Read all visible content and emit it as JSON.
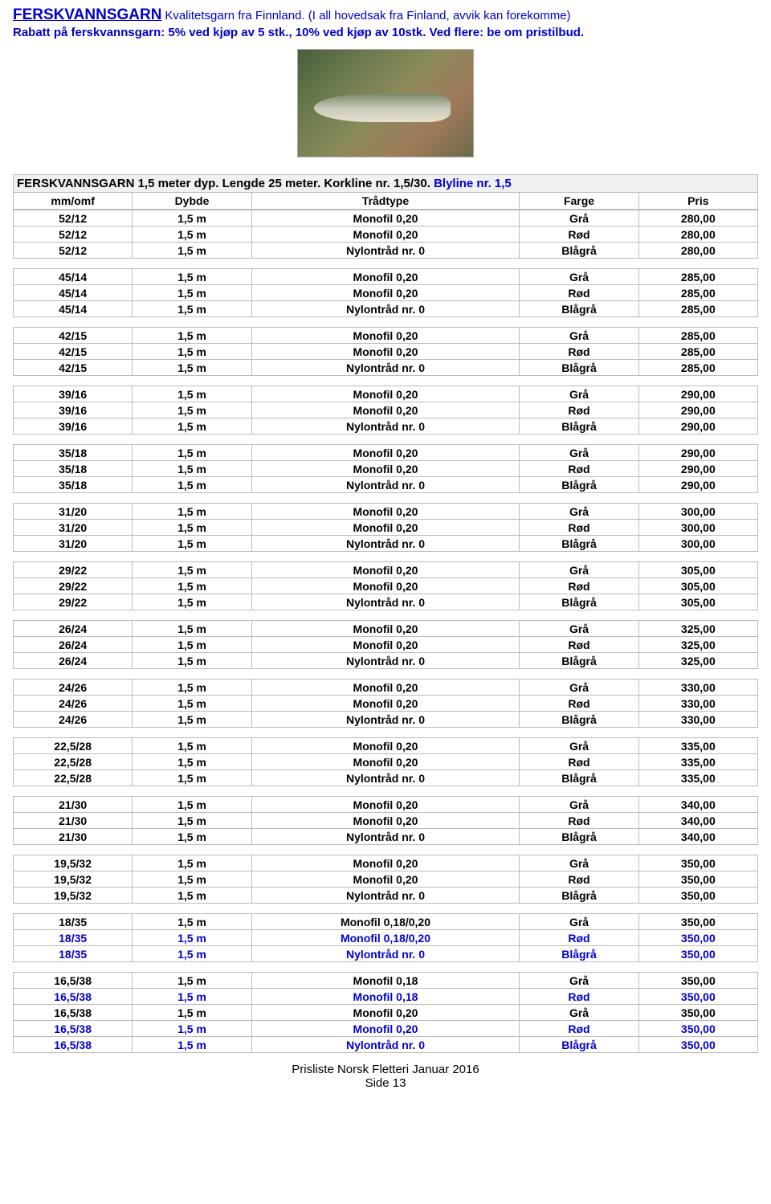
{
  "header": {
    "title": "FERSKVANNSGARN",
    "subtitle": "Kvalitetsgarn fra Finnland. (I all hovedsak fra Finland, avvik kan forekomme)",
    "discount": "Rabatt på ferskvannsgarn: 5% ved kjøp av 5 stk., 10% ved kjøp av 10stk. Ved flere: be om pristilbud."
  },
  "section": {
    "title_black": "FERSKVANNSGARN 1,5 meter dyp. Lengde 25 meter. Korkline nr. 1,5/30. ",
    "title_blue": "Blyline nr. 1,5"
  },
  "columns": [
    "mm/omf",
    "Dybde",
    "Trådtype",
    "Farge",
    "Pris"
  ],
  "groups": [
    {
      "rows": [
        {
          "c": [
            "52/12",
            "1,5 m",
            "Monofil 0,20",
            "Grå",
            "280,00"
          ],
          "blue": false
        },
        {
          "c": [
            "52/12",
            "1,5 m",
            "Monofil 0,20",
            "Rød",
            "280,00"
          ],
          "blue": false
        },
        {
          "c": [
            "52/12",
            "1,5 m",
            "Nylontråd nr. 0",
            "Blågrå",
            "280,00"
          ],
          "blue": false
        }
      ]
    },
    {
      "rows": [
        {
          "c": [
            "45/14",
            "1,5 m",
            "Monofil 0,20",
            "Grå",
            "285,00"
          ],
          "blue": false
        },
        {
          "c": [
            "45/14",
            "1,5 m",
            "Monofil 0,20",
            "Rød",
            "285,00"
          ],
          "blue": false
        },
        {
          "c": [
            "45/14",
            "1,5 m",
            "Nylontråd nr. 0",
            "Blågrå",
            "285,00"
          ],
          "blue": false
        }
      ]
    },
    {
      "rows": [
        {
          "c": [
            "42/15",
            "1,5 m",
            "Monofil 0,20",
            "Grå",
            "285,00"
          ],
          "blue": false
        },
        {
          "c": [
            "42/15",
            "1,5 m",
            "Monofil 0,20",
            "Rød",
            "285,00"
          ],
          "blue": false
        },
        {
          "c": [
            "42/15",
            "1,5 m",
            "Nylontråd nr. 0",
            "Blågrå",
            "285,00"
          ],
          "blue": false
        }
      ]
    },
    {
      "rows": [
        {
          "c": [
            "39/16",
            "1,5 m",
            "Monofil 0,20",
            "Grå",
            "290,00"
          ],
          "blue": false
        },
        {
          "c": [
            "39/16",
            "1,5 m",
            "Monofil 0,20",
            "Rød",
            "290,00"
          ],
          "blue": false
        },
        {
          "c": [
            "39/16",
            "1,5 m",
            "Nylontråd nr. 0",
            "Blågrå",
            "290,00"
          ],
          "blue": false
        }
      ]
    },
    {
      "rows": [
        {
          "c": [
            "35/18",
            "1,5 m",
            "Monofil 0,20",
            "Grå",
            "290,00"
          ],
          "blue": false
        },
        {
          "c": [
            "35/18",
            "1,5 m",
            "Monofil 0,20",
            "Rød",
            "290,00"
          ],
          "blue": false
        },
        {
          "c": [
            "35/18",
            "1,5 m",
            "Nylontråd nr. 0",
            "Blågrå",
            "290,00"
          ],
          "blue": false
        }
      ]
    },
    {
      "rows": [
        {
          "c": [
            "31/20",
            "1,5 m",
            "Monofil 0,20",
            "Grå",
            "300,00"
          ],
          "blue": false
        },
        {
          "c": [
            "31/20",
            "1,5 m",
            "Monofil 0,20",
            "Rød",
            "300,00"
          ],
          "blue": false
        },
        {
          "c": [
            "31/20",
            "1,5 m",
            "Nylontråd nr. 0",
            "Blågrå",
            "300,00"
          ],
          "blue": false
        }
      ]
    },
    {
      "rows": [
        {
          "c": [
            "29/22",
            "1,5 m",
            "Monofil 0,20",
            "Grå",
            "305,00"
          ],
          "blue": false
        },
        {
          "c": [
            "29/22",
            "1,5 m",
            "Monofil 0,20",
            "Rød",
            "305,00"
          ],
          "blue": false
        },
        {
          "c": [
            "29/22",
            "1,5 m",
            "Nylontråd nr. 0",
            "Blågrå",
            "305,00"
          ],
          "blue": false
        }
      ]
    },
    {
      "rows": [
        {
          "c": [
            "26/24",
            "1,5 m",
            "Monofil 0,20",
            "Grå",
            "325,00"
          ],
          "blue": false
        },
        {
          "c": [
            "26/24",
            "1,5 m",
            "Monofil 0,20",
            "Rød",
            "325,00"
          ],
          "blue": false
        },
        {
          "c": [
            "26/24",
            "1,5 m",
            "Nylontråd nr. 0",
            "Blågrå",
            "325,00"
          ],
          "blue": false
        }
      ]
    },
    {
      "rows": [
        {
          "c": [
            "24/26",
            "1,5 m",
            "Monofil 0,20",
            "Grå",
            "330,00"
          ],
          "blue": false
        },
        {
          "c": [
            "24/26",
            "1,5 m",
            "Monofil 0,20",
            "Rød",
            "330,00"
          ],
          "blue": false
        },
        {
          "c": [
            "24/26",
            "1,5 m",
            "Nylontråd nr. 0",
            "Blågrå",
            "330,00"
          ],
          "blue": false
        }
      ]
    },
    {
      "rows": [
        {
          "c": [
            "22,5/28",
            "1,5 m",
            "Monofil 0,20",
            "Grå",
            "335,00"
          ],
          "blue": false
        },
        {
          "c": [
            "22,5/28",
            "1,5 m",
            "Monofil 0,20",
            "Rød",
            "335,00"
          ],
          "blue": false
        },
        {
          "c": [
            "22,5/28",
            "1,5 m",
            "Nylontråd nr. 0",
            "Blågrå",
            "335,00"
          ],
          "blue": false
        }
      ]
    },
    {
      "rows": [
        {
          "c": [
            "21/30",
            "1,5 m",
            "Monofil 0,20",
            "Grå",
            "340,00"
          ],
          "blue": false
        },
        {
          "c": [
            "21/30",
            "1,5 m",
            "Monofil 0,20",
            "Rød",
            "340,00"
          ],
          "blue": false
        },
        {
          "c": [
            "21/30",
            "1,5 m",
            "Nylontråd nr. 0",
            "Blågrå",
            "340,00"
          ],
          "blue": false
        }
      ]
    },
    {
      "rows": [
        {
          "c": [
            "19,5/32",
            "1,5 m",
            "Monofil 0,20",
            "Grå",
            "350,00"
          ],
          "blue": false
        },
        {
          "c": [
            "19,5/32",
            "1,5 m",
            "Monofil 0,20",
            "Rød",
            "350,00"
          ],
          "blue": false
        },
        {
          "c": [
            "19,5/32",
            "1,5 m",
            "Nylontråd nr. 0",
            "Blågrå",
            "350,00"
          ],
          "blue": false
        }
      ]
    },
    {
      "rows": [
        {
          "c": [
            "18/35",
            "1,5 m",
            "Monofil 0,18/0,20",
            "Grå",
            "350,00"
          ],
          "blue": false
        },
        {
          "c": [
            "18/35",
            "1,5 m",
            "Monofil 0,18/0,20",
            "Rød",
            "350,00"
          ],
          "blue": true
        },
        {
          "c": [
            "18/35",
            "1,5 m",
            "Nylontråd nr. 0",
            "Blågrå",
            "350,00"
          ],
          "blue": true
        }
      ]
    },
    {
      "rows": [
        {
          "c": [
            "16,5/38",
            "1,5 m",
            "Monofil 0,18",
            "Grå",
            "350,00"
          ],
          "blue": false
        },
        {
          "c": [
            "16,5/38",
            "1,5 m",
            "Monofil 0,18",
            "Rød",
            "350,00"
          ],
          "blue": true
        },
        {
          "c": [
            "16,5/38",
            "1,5 m",
            "Monofil 0,20",
            "Grå",
            "350,00"
          ],
          "blue": false
        },
        {
          "c": [
            "16,5/38",
            "1,5 m",
            "Monofil 0,20",
            "Rød",
            "350,00"
          ],
          "blue": true
        },
        {
          "c": [
            "16,5/38",
            "1,5 m",
            "Nylontråd nr. 0",
            "Blågrå",
            "350,00"
          ],
          "blue": true
        }
      ]
    }
  ],
  "footer": {
    "line1": "Prisliste Norsk Fletteri Januar 2016",
    "line2": "Side 13"
  }
}
